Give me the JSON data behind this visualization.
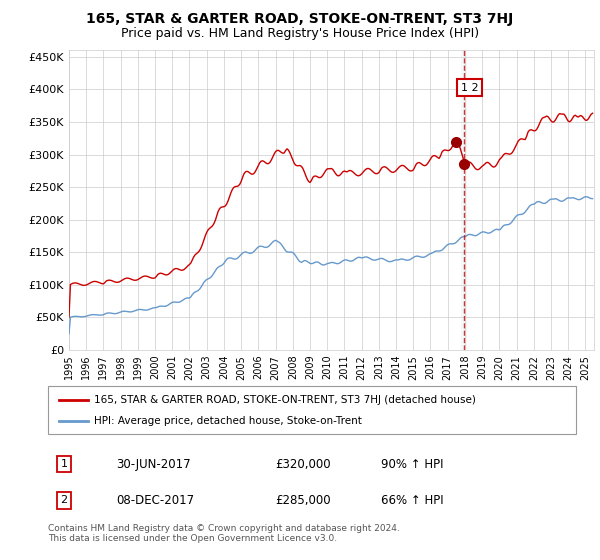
{
  "title1": "165, STAR & GARTER ROAD, STOKE-ON-TRENT, ST3 7HJ",
  "title2": "Price paid vs. HM Land Registry's House Price Index (HPI)",
  "legend_line1": "165, STAR & GARTER ROAD, STOKE-ON-TRENT, ST3 7HJ (detached house)",
  "legend_line2": "HPI: Average price, detached house, Stoke-on-Trent",
  "transaction1_date": "30-JUN-2017",
  "transaction1_price": "£320,000",
  "transaction1_hpi": "90% ↑ HPI",
  "transaction2_date": "08-DEC-2017",
  "transaction2_price": "£285,000",
  "transaction2_hpi": "66% ↑ HPI",
  "sale1_x": 2017.5,
  "sale1_y": 320000,
  "sale2_x": 2017.92,
  "sale2_y": 285000,
  "vline_x": 2017.92,
  "red_line_color": "#cc0000",
  "blue_line_color": "#6699cc",
  "marker_color": "#990000",
  "vline_color": "#cc0000",
  "highlight_box_color": "#cc0000",
  "footer_text": "Contains HM Land Registry data © Crown copyright and database right 2024.\nThis data is licensed under the Open Government Licence v3.0.",
  "ylim": [
    0,
    460000
  ],
  "xlim_start": 1995.0,
  "xlim_end": 2025.5
}
